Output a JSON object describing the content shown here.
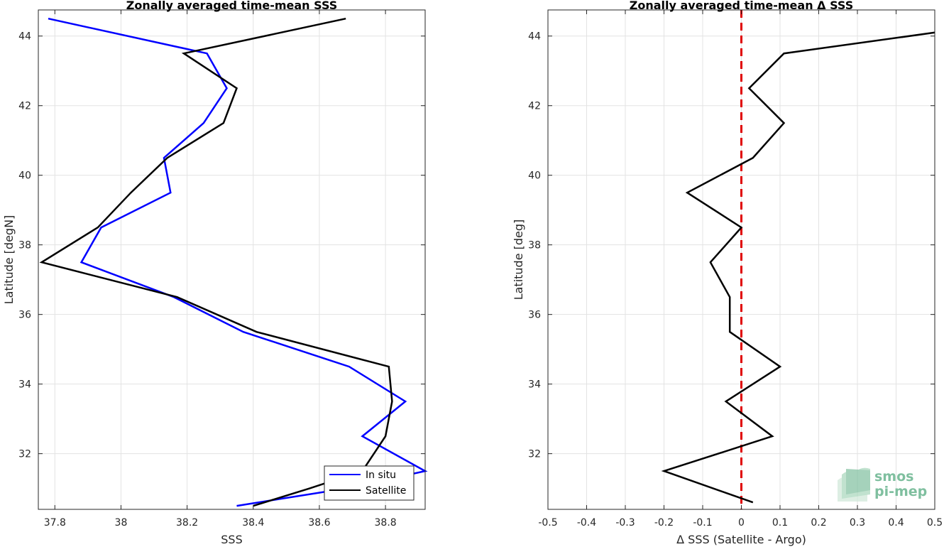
{
  "chart_data": [
    {
      "type": "line",
      "title": "Zonally averaged time-mean SSS",
      "xlabel": "SSS",
      "ylabel": "Latitude [degN]",
      "xlim": [
        37.75,
        38.92
      ],
      "ylim": [
        30.4,
        44.75
      ],
      "x_ticks": [
        37.8,
        38,
        38.2,
        38.4,
        38.6,
        38.8
      ],
      "x_tick_labels": [
        "37.8",
        "38",
        "38.2",
        "38.4",
        "38.6",
        "38.8"
      ],
      "y_ticks": [
        32,
        34,
        36,
        38,
        40,
        42,
        44
      ],
      "y_tick_labels": [
        "32",
        "34",
        "36",
        "38",
        "40",
        "42",
        "44"
      ],
      "grid": true,
      "legend_position": "bottom-right",
      "series": [
        {
          "name": "In situ",
          "color": "#0000ff",
          "points": [
            [
              38.35,
              30.5
            ],
            [
              38.68,
              31.0
            ],
            [
              38.92,
              31.5
            ],
            [
              38.73,
              32.5
            ],
            [
              38.86,
              33.5
            ],
            [
              38.69,
              34.5
            ],
            [
              38.37,
              35.5
            ],
            [
              38.16,
              36.5
            ],
            [
              37.88,
              37.5
            ],
            [
              37.94,
              38.5
            ],
            [
              38.15,
              39.5
            ],
            [
              38.13,
              40.5
            ],
            [
              38.25,
              41.5
            ],
            [
              38.32,
              42.5
            ],
            [
              38.26,
              43.5
            ],
            [
              37.78,
              44.5
            ]
          ]
        },
        {
          "name": "Satellite",
          "color": "#000000",
          "points": [
            [
              38.4,
              30.5
            ],
            [
              38.57,
              31.0
            ],
            [
              38.73,
              31.5
            ],
            [
              38.8,
              32.5
            ],
            [
              38.82,
              33.5
            ],
            [
              38.81,
              34.5
            ],
            [
              38.41,
              35.5
            ],
            [
              38.17,
              36.5
            ],
            [
              37.76,
              37.5
            ],
            [
              37.93,
              38.5
            ],
            [
              38.03,
              39.5
            ],
            [
              38.14,
              40.5
            ],
            [
              38.31,
              41.5
            ],
            [
              38.35,
              42.5
            ],
            [
              38.19,
              43.5
            ],
            [
              38.68,
              44.5
            ]
          ]
        }
      ]
    },
    {
      "type": "line",
      "title": "Zonally averaged time-mean Δ SSS",
      "xlabel": "Δ SSS (Satellite - Argo)",
      "ylabel": "Latitude [deg]",
      "xlim": [
        -0.5,
        0.5
      ],
      "ylim": [
        30.4,
        44.75
      ],
      "x_ticks": [
        -0.5,
        -0.4,
        -0.3,
        -0.2,
        -0.1,
        0,
        0.1,
        0.2,
        0.3,
        0.4,
        0.5
      ],
      "x_tick_labels": [
        "-0.5",
        "-0.4",
        "-0.3",
        "-0.2",
        "-0.1",
        "0",
        "0.1",
        "0.2",
        "0.3",
        "0.4",
        "0.5"
      ],
      "y_ticks": [
        32,
        34,
        36,
        38,
        40,
        42,
        44
      ],
      "y_tick_labels": [
        "32",
        "34",
        "36",
        "38",
        "40",
        "42",
        "44"
      ],
      "grid": true,
      "reference_line": {
        "x": 0,
        "color": "#e00000",
        "style": "dashed"
      },
      "series": [
        {
          "color": "#000000",
          "points": [
            [
              0.03,
              30.6
            ],
            [
              -0.2,
              31.5
            ],
            [
              0.08,
              32.5
            ],
            [
              -0.04,
              33.5
            ],
            [
              0.1,
              34.5
            ],
            [
              -0.03,
              35.5
            ],
            [
              -0.03,
              36.5
            ],
            [
              -0.08,
              37.5
            ],
            [
              0.0,
              38.5
            ],
            [
              -0.14,
              39.5
            ],
            [
              0.03,
              40.5
            ],
            [
              0.11,
              41.5
            ],
            [
              0.02,
              42.5
            ],
            [
              0.11,
              43.5
            ],
            [
              0.5,
              44.1
            ]
          ]
        }
      ]
    }
  ],
  "logo": {
    "line1": "smos",
    "line2": "pi-mep",
    "color": "#7fbf9f"
  }
}
